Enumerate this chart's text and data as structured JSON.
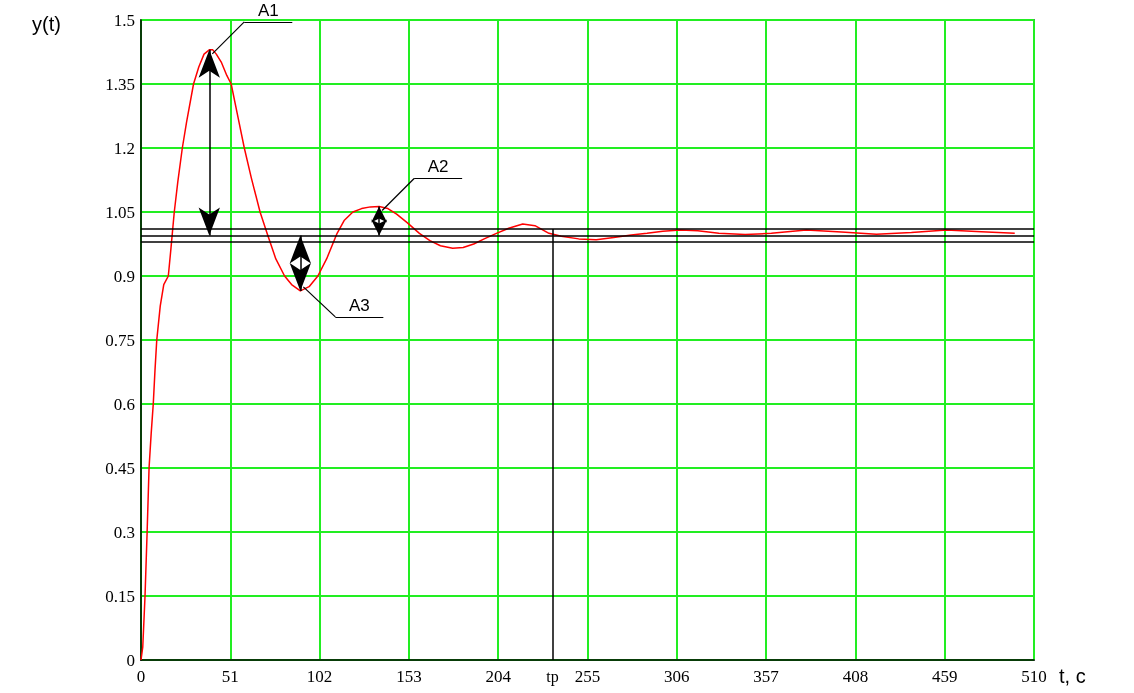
{
  "chart_data": {
    "type": "line",
    "xlabel": "t, c",
    "ylabel": "y(t)",
    "series": [
      {
        "color": "#ff0000",
        "x": [
          0,
          1,
          2.3,
          3.5,
          4.6,
          5.8,
          7,
          8,
          9,
          11,
          13,
          15.6,
          17,
          19,
          21,
          23.6,
          26,
          30,
          33,
          36,
          39,
          41,
          43,
          46,
          49,
          51.5,
          55,
          59,
          63,
          68,
          72,
          77,
          82,
          86,
          91,
          96,
          101,
          106,
          112,
          116,
          121,
          126,
          131,
          136,
          141,
          146,
          152,
          159,
          165,
          171,
          178,
          184,
          190,
          196,
          203,
          210,
          218,
          225,
          233,
          240,
          250,
          260,
          270,
          280,
          289,
          298,
          308,
          318,
          330,
          345,
          360,
          380,
          400,
          420,
          440,
          460,
          480,
          499
        ],
        "values": [
          0,
          0.03,
          0.15,
          0.3,
          0.45,
          0.53,
          0.6,
          0.68,
          0.75,
          0.83,
          0.88,
          0.9,
          0.96,
          1.05,
          1.12,
          1.2,
          1.26,
          1.35,
          1.39,
          1.42,
          1.43,
          1.43,
          1.42,
          1.4,
          1.37,
          1.35,
          1.28,
          1.2,
          1.13,
          1.05,
          1.0,
          0.94,
          0.9,
          0.88,
          0.865,
          0.875,
          0.9,
          0.94,
          1.0,
          1.03,
          1.05,
          1.058,
          1.062,
          1.063,
          1.058,
          1.045,
          1.025,
          1.0,
          0.983,
          0.971,
          0.965,
          0.967,
          0.975,
          0.987,
          1.0,
          1.012,
          1.022,
          1.018,
          1.0,
          0.993,
          0.987,
          0.985,
          0.99,
          0.996,
          1.0,
          1.005,
          1.008,
          1.006,
          1.0,
          0.997,
          1.0,
          1.008,
          1.003,
          0.998,
          1.002,
          1.008,
          1.004,
          1.0
        ]
      }
    ],
    "xlim": [
      0,
      510
    ],
    "xticks": [
      0,
      51,
      102,
      153,
      204,
      255,
      306,
      357,
      408,
      459,
      510
    ],
    "ylim": [
      0,
      1.5
    ],
    "yticks": [
      0,
      0.15,
      0.3,
      0.45,
      0.6,
      0.75,
      0.9,
      1.05,
      1.2,
      1.35,
      1.5
    ],
    "grid": true,
    "marker": "none",
    "line_style": "solid",
    "ref_lines": [
      {
        "axis": "y",
        "value": 1.01,
        "color": "#000000"
      },
      {
        "axis": "y",
        "value": 0.995,
        "color": "#000000"
      },
      {
        "axis": "y",
        "value": 0.98,
        "color": "#000000"
      },
      {
        "axis": "x",
        "value": 235,
        "label": "tp",
        "color": "#000000"
      }
    ],
    "annotations": [
      {
        "text": "A1",
        "x": 39,
        "y": 1.43
      },
      {
        "text": "A2",
        "x": 136,
        "y": 1.063
      },
      {
        "text": "A3",
        "x": 91,
        "y": 0.865
      }
    ]
  }
}
